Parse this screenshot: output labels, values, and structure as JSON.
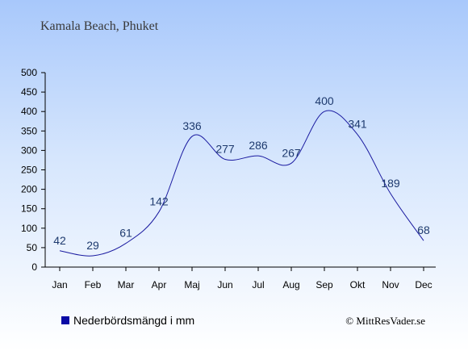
{
  "chart_data": {
    "type": "line",
    "title": "Kamala Beach, Phuket",
    "categories": [
      "Jan",
      "Feb",
      "Mar",
      "Apr",
      "Maj",
      "Jun",
      "Jul",
      "Aug",
      "Sep",
      "Okt",
      "Nov",
      "Dec"
    ],
    "series": [
      {
        "name": "Nederbördsmängd i mm",
        "values": [
          42,
          29,
          61,
          142,
          336,
          277,
          286,
          267,
          400,
          341,
          189,
          68
        ]
      }
    ],
    "data_labels": [
      "42",
      "29",
      "61",
      "142",
      "336",
      "277",
      "286",
      "267",
      "400",
      "341",
      "189",
      "68"
    ],
    "yticks": [
      0,
      50,
      100,
      150,
      200,
      250,
      300,
      350,
      400,
      450,
      500
    ],
    "ylim": [
      0,
      500
    ],
    "xlabel": "",
    "ylabel": "",
    "grid": false,
    "legend_position": "bottom-left",
    "line_color": "#1a1aa0",
    "legend_marker_color": "#0a0aa5",
    "copyright": "© MittResVader.se"
  }
}
